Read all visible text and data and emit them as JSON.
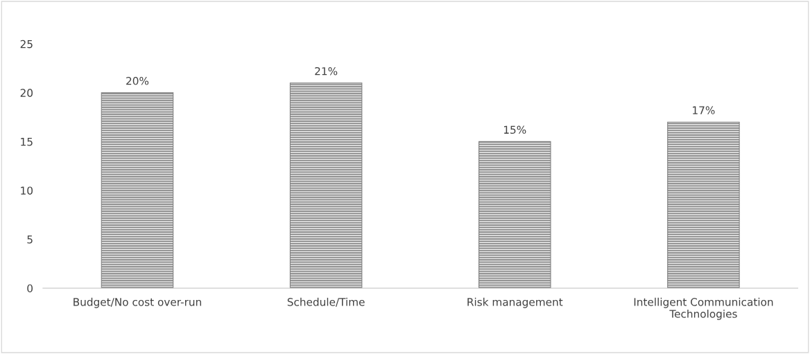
{
  "chart_data": {
    "type": "bar",
    "categories": [
      "Budget/No cost over-run",
      "Schedule/Time",
      "Risk management",
      "Intelligent Communication\nTechnologies"
    ],
    "values": [
      20,
      21,
      15,
      17
    ],
    "value_labels": [
      "20%",
      "21%",
      "15%",
      "17%"
    ],
    "color": "#7f7f7f",
    "ylim": [
      0,
      25
    ],
    "yticks": [
      0,
      5,
      10,
      15,
      20,
      25
    ],
    "grid": false,
    "legend": false
  }
}
